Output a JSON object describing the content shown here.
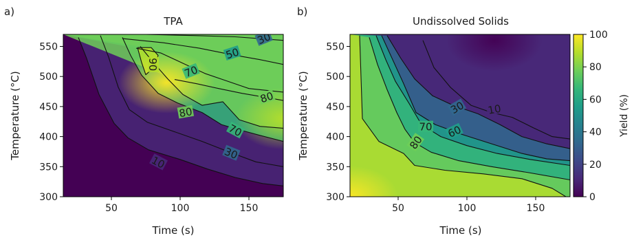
{
  "colormap": [
    "#440154",
    "#482878",
    "#3e4989",
    "#31688e",
    "#26828e",
    "#1f9e89",
    "#35b779",
    "#6ece58",
    "#b5de2b",
    "#fde725"
  ],
  "chart_data": [
    {
      "type": "heatmap",
      "panel": "a)",
      "title": "TPA",
      "xlabel": "Time (s)",
      "ylabel": "Temperature (°C)",
      "xlim": [
        15,
        175
      ],
      "ylim": [
        300,
        570
      ],
      "xticks": [
        50,
        100,
        150
      ],
      "yticks": [
        300,
        350,
        400,
        450,
        500,
        550
      ],
      "grid": false,
      "contours": [
        {
          "level": 10,
          "label": "10",
          "label_at": [
            84,
            357
          ],
          "label_angle": 28,
          "points": [
            [
              26,
              565
            ],
            [
              32,
              530
            ],
            [
              41,
              470
            ],
            [
              52,
              422
            ],
            [
              62,
              398
            ],
            [
              77,
              378
            ],
            [
              100,
              362
            ],
            [
              120,
              346
            ],
            [
              140,
              332
            ],
            [
              160,
              322
            ],
            [
              175,
              318
            ]
          ]
        },
        {
          "level": 30,
          "label": "30",
          "label_at": [
            137,
            372
          ],
          "label_angle": 22,
          "points": [
            [
              42,
              568
            ],
            [
              48,
              532
            ],
            [
              55,
              482
            ],
            [
              63,
              445
            ],
            [
              76,
              424
            ],
            [
              96,
              408
            ],
            [
              116,
              392
            ],
            [
              136,
              374
            ],
            [
              155,
              358
            ],
            [
              175,
              350
            ]
          ]
        },
        {
          "level": 70,
          "label": "70",
          "label_at": [
            140,
            410
          ],
          "label_angle": 28,
          "points": [
            [
              58,
              565
            ],
            [
              64,
              535
            ],
            [
              72,
              502
            ],
            [
              84,
              472
            ],
            [
              98,
              456
            ],
            [
              116,
              440
            ],
            [
              130,
              420
            ],
            [
              142,
              412
            ],
            [
              158,
              402
            ],
            [
              175,
              392
            ]
          ]
        },
        {
          "level": 80,
          "label": "80",
          "label_at": [
            104,
            440
          ],
          "label_angle": -10,
          "points": [
            [
              71,
              550
            ],
            [
              81,
              522
            ],
            [
              91,
              496
            ],
            [
              102,
              470
            ],
            [
              116,
              452
            ],
            [
              131,
              458
            ],
            [
              143,
              428
            ],
            [
              158,
              417
            ],
            [
              175,
              414
            ]
          ]
        },
        {
          "level": 90,
          "label": "90",
          "label_at": [
            80,
            520
          ],
          "label_angle": 90,
          "points": [
            [
              69,
              548
            ],
            [
              79,
              548
            ],
            [
              84,
              535
            ],
            [
              81,
              515
            ],
            [
              75,
              503
            ],
            [
              72,
              523
            ],
            [
              69,
              548
            ]
          ]
        },
        {
          "level": 70,
          "label": "70",
          "label_at": [
            108,
            508
          ],
          "label_angle": -22,
          "points": [
            [
              68,
              547
            ],
            [
              86,
              539
            ],
            [
              102,
              522
            ],
            [
              118,
              505
            ],
            [
              132,
              494
            ],
            [
              150,
              480
            ],
            [
              175,
              474
            ]
          ]
        },
        {
          "level": 50,
          "label": "50",
          "label_at": [
            138,
            538
          ],
          "label_angle": -18,
          "points": [
            [
              58,
              563
            ],
            [
              88,
              556
            ],
            [
              114,
              547
            ],
            [
              138,
              536
            ],
            [
              158,
              528
            ],
            [
              175,
              520
            ]
          ]
        },
        {
          "level": 80,
          "label": "80",
          "label_at": [
            163,
            465
          ],
          "label_angle": -18,
          "points": [
            [
              96,
              495
            ],
            [
              112,
              488
            ],
            [
              128,
              480
            ],
            [
              145,
              472
            ],
            [
              163,
              465
            ],
            [
              175,
              460
            ]
          ]
        },
        {
          "level": 30,
          "label": "30",
          "label_at": [
            161,
            563
          ],
          "label_angle": -22,
          "points": [
            [
              75,
              570
            ],
            [
              110,
              568
            ],
            [
              140,
              566
            ],
            [
              175,
              560
            ]
          ]
        }
      ],
      "intensity_peaks": [
        {
          "x": 90,
          "y": 490,
          "value": 95
        },
        {
          "x": 175,
          "y": 430,
          "value": 90
        }
      ]
    },
    {
      "type": "heatmap",
      "panel": "b)",
      "title": "Undissolved Solids",
      "xlabel": "Time (s)",
      "ylabel": "Temperature (°C)",
      "xlim": [
        15,
        175
      ],
      "ylim": [
        300,
        570
      ],
      "xticks": [
        50,
        100,
        150
      ],
      "yticks": [
        300,
        350,
        400,
        450,
        500,
        550
      ],
      "grid": false,
      "colorbar": {
        "label": "Yield (%)",
        "range": [
          0,
          100
        ],
        "ticks": [
          0,
          20,
          40,
          60,
          80,
          100
        ]
      },
      "contours": [
        {
          "level": 10,
          "label": "10",
          "label_at": [
            120,
            445
          ],
          "label_angle": -10,
          "points": [
            [
              68,
              560
            ],
            [
              76,
              515
            ],
            [
              88,
              482
            ],
            [
              103,
              452
            ],
            [
              118,
              440
            ],
            [
              133,
              432
            ],
            [
              148,
              415
            ],
            [
              162,
              400
            ],
            [
              175,
              396
            ]
          ]
        },
        {
          "level": 30,
          "label": "30",
          "label_at": [
            93,
            448
          ],
          "label_angle": -30,
          "points": [
            [
              42,
              568
            ],
            [
              52,
              530
            ],
            [
              62,
              496
            ],
            [
              75,
              468
            ],
            [
              90,
              452
            ],
            [
              108,
              438
            ],
            [
              124,
              420
            ],
            [
              140,
              400
            ],
            [
              158,
              388
            ],
            [
              175,
              380
            ]
          ]
        },
        {
          "level": 60,
          "label": "60",
          "label_at": [
            91,
            408
          ],
          "label_angle": -25,
          "points": [
            [
              38,
              568
            ],
            [
              46,
              528
            ],
            [
              54,
              488
            ],
            [
              63,
              440
            ],
            [
              77,
              420
            ],
            [
              96,
              404
            ],
            [
              118,
              388
            ],
            [
              140,
              372
            ],
            [
              158,
              363
            ],
            [
              175,
              360
            ]
          ]
        },
        {
          "level": 70,
          "label": "70",
          "label_at": [
            70,
            416
          ],
          "label_angle": 0,
          "points": [
            [
              34,
              568
            ],
            [
              41,
              528
            ],
            [
              48,
              492
            ],
            [
              58,
              455
            ],
            [
              67,
              420
            ],
            [
              81,
              400
            ],
            [
              100,
              385
            ],
            [
              122,
              372
            ],
            [
              146,
              362
            ],
            [
              175,
              352
            ]
          ]
        },
        {
          "level": 80,
          "label": "80",
          "label_at": [
            63,
            390
          ],
          "label_angle": -55,
          "points": [
            [
              29,
              565
            ],
            [
              35,
              520
            ],
            [
              42,
              478
            ],
            [
              49,
              440
            ],
            [
              55,
              412
            ],
            [
              62,
              390
            ],
            [
              74,
              374
            ],
            [
              94,
              360
            ],
            [
              118,
              350
            ],
            [
              145,
              340
            ],
            [
              175,
              328
            ]
          ]
        },
        {
          "level": 90,
          "label": "",
          "label_at": [
            20,
            300
          ],
          "label_angle": 0,
          "points": [
            [
              22,
              568
            ],
            [
              24,
              430
            ],
            [
              36,
              392
            ],
            [
              54,
              372
            ],
            [
              62,
              352
            ],
            [
              84,
              344
            ],
            [
              112,
              338
            ],
            [
              140,
              330
            ],
            [
              162,
              314
            ],
            [
              172,
              300
            ]
          ]
        }
      ],
      "intensity_peaks": [
        {
          "x": 15,
          "y": 300,
          "value": 97
        },
        {
          "x": 120,
          "y": 560,
          "value": 3
        }
      ]
    }
  ]
}
